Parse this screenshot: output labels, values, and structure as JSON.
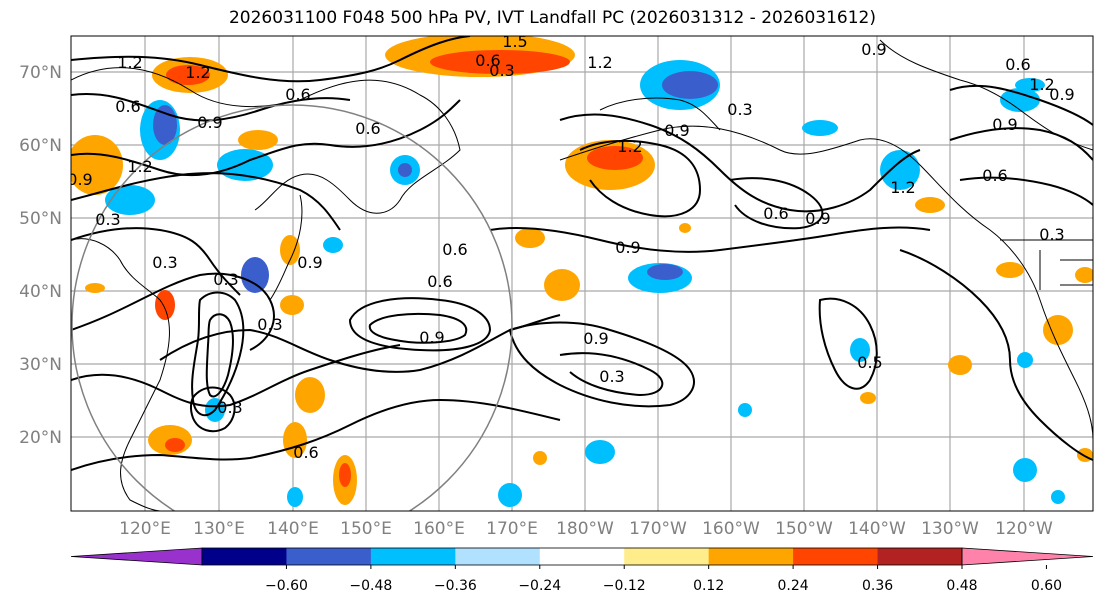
{
  "title": "2026031100 F048 500 hPa PV, IVT Landfall PC (2026031312 - 2026031612)",
  "map": {
    "lat_labels": [
      "70°N",
      "60°N",
      "50°N",
      "40°N",
      "30°N",
      "20°N"
    ],
    "lon_labels": [
      "120°E",
      "130°E",
      "140°E",
      "150°E",
      "160°E",
      "170°E",
      "180°W",
      "170°W",
      "160°W",
      "150°W",
      "140°W",
      "130°W",
      "120°W"
    ],
    "contour_labels": [
      "1.2",
      "1.2",
      "1.5",
      "0.6",
      "0.3",
      "1.2",
      "0.6",
      "0.9",
      "0.6",
      "0.3",
      "0.9",
      "0.6",
      "0.9",
      "1.2",
      "0.6",
      "0.9",
      "0.3",
      "1.2",
      "0.6",
      "0.9",
      "1.2",
      "0.9",
      "0.3",
      "0.3",
      "0.3",
      "0.9",
      "0.6",
      "0.9",
      "0.6",
      "0.9",
      "0.6",
      "0.9",
      "0.9",
      "0.3",
      "0.6",
      "0.3",
      "0.3",
      "1.2",
      "0.5"
    ],
    "colors": {
      "grid": "#a9a9a9",
      "coast": "#000000",
      "contour": "#000000",
      "circle": "#808080"
    }
  },
  "colorbar": {
    "ticks": [
      "−0.60",
      "−0.48",
      "−0.36",
      "−0.24",
      "−0.12",
      "0.12",
      "0.24",
      "0.36",
      "0.48",
      "0.60"
    ],
    "colors": [
      "#9932cc",
      "#00008b",
      "#3a5fcd",
      "#00bfff",
      "#b0e2ff",
      "#ffffff",
      "#ffec8b",
      "#ffa500",
      "#ff4500",
      "#b22222",
      "#ff82ab"
    ]
  }
}
